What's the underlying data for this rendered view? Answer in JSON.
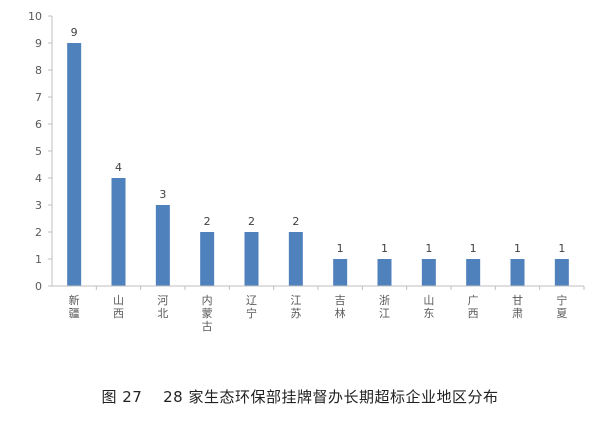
{
  "caption": "图 27　 28 家生态环保部挂牌督办长期超标企业地区分布",
  "chart_data": {
    "type": "bar",
    "categories": [
      "新疆",
      "山西",
      "河北",
      "内蒙古",
      "辽宁",
      "江苏",
      "吉林",
      "浙江",
      "山东",
      "广西",
      "甘肃",
      "宁夏"
    ],
    "values": [
      9,
      4,
      3,
      2,
      2,
      2,
      1,
      1,
      1,
      1,
      1,
      1
    ],
    "ylim": [
      0,
      10
    ],
    "yticks": [
      0,
      1,
      2,
      3,
      4,
      5,
      6,
      7,
      8,
      9,
      10
    ],
    "bar_color": "#4F81BD",
    "axis_color": "#BFBFBF",
    "grid": false,
    "legend": "none"
  }
}
